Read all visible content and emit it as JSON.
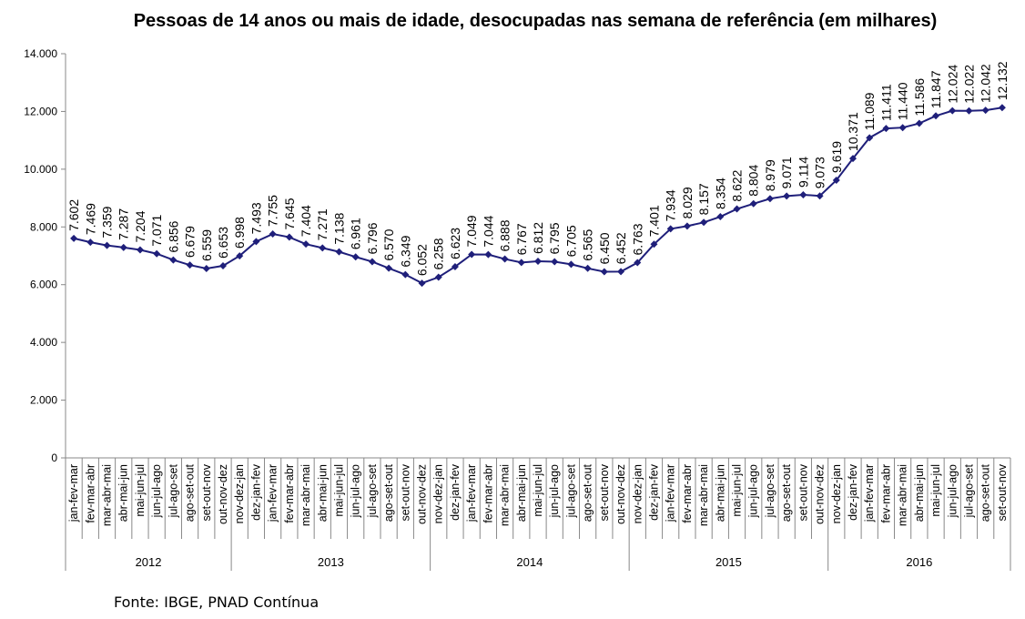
{
  "chart_data": {
    "type": "line",
    "title": "Pessoas de 14 anos ou mais de idade, desocupadas nas semana de referência (em milhares)",
    "ylim": [
      0,
      14000
    ],
    "yticks": [
      0,
      2000,
      4000,
      6000,
      8000,
      10000,
      12000,
      14000
    ],
    "ytick_labels": [
      "0",
      "2.000",
      "4.000",
      "6.000",
      "8.000",
      "10.000",
      "12.000",
      "14.000"
    ],
    "grid": false,
    "line_color": "#1f1f7a",
    "categories": [
      "jan-fev-mar",
      "fev-mar-abr",
      "mar-abr-mai",
      "abr-mai-jun",
      "mai-jun-jul",
      "jun-jul-ago",
      "jul-ago-set",
      "ago-set-out",
      "set-out-nov",
      "out-nov-dez",
      "nov-dez-jan",
      "dez-jan-fev",
      "jan-fev-mar",
      "fev-mar-abr",
      "mar-abr-mai",
      "abr-mai-jun",
      "mai-jun-jul",
      "jun-jul-ago",
      "jul-ago-set",
      "ago-set-out",
      "set-out-nov",
      "out-nov-dez",
      "nov-dez-jan",
      "dez-jan-fev",
      "jan-fev-mar",
      "fev-mar-abr",
      "mar-abr-mai",
      "abr-mai-jun",
      "mai-jun-jul",
      "jun-jul-ago",
      "jul-ago-set",
      "ago-set-out",
      "set-out-nov",
      "out-nov-dez",
      "nov-dez-jan",
      "dez-jan-fev",
      "jan-fev-mar",
      "fev-mar-abr",
      "mar-abr-mai",
      "abr-mai-jun",
      "mai-jun-jul",
      "jun-jul-ago",
      "jul-ago-set",
      "ago-set-out",
      "set-out-nov",
      "out-nov-dez",
      "nov-dez-jan",
      "dez-jan-fev",
      "jan-fev-mar",
      "fev-mar-abr",
      "mar-abr-mai",
      "abr-mai-jun",
      "mai-jun-jul",
      "jun-jul-ago",
      "jul-ago-set",
      "ago-set-out",
      "set-out-nov"
    ],
    "values": [
      7602,
      7469,
      7359,
      7287,
      7204,
      7071,
      6856,
      6679,
      6559,
      6653,
      6998,
      7493,
      7755,
      7645,
      7404,
      7271,
      7138,
      6961,
      6796,
      6570,
      6349,
      6052,
      6258,
      6623,
      7049,
      7044,
      6888,
      6767,
      6812,
      6795,
      6705,
      6565,
      6450,
      6452,
      6763,
      7401,
      7934,
      8029,
      8157,
      8354,
      8622,
      8804,
      8979,
      9071,
      9114,
      9073,
      9619,
      10371,
      11089,
      11411,
      11440,
      11586,
      11847,
      12024,
      12022,
      12042,
      12132
    ],
    "value_labels": [
      "7.602",
      "7.469",
      "7.359",
      "7.287",
      "7.204",
      "7.071",
      "6.856",
      "6.679",
      "6.559",
      "6.653",
      "6.998",
      "7.493",
      "7.755",
      "7.645",
      "7.404",
      "7.271",
      "7.138",
      "6.961",
      "6.796",
      "6.570",
      "6.349",
      "6.052",
      "6.258",
      "6.623",
      "7.049",
      "7.044",
      "6.888",
      "6.767",
      "6.812",
      "6.795",
      "6.705",
      "6.565",
      "6.450",
      "6.452",
      "6.763",
      "7.401",
      "7.934",
      "8.029",
      "8.157",
      "8.354",
      "8.622",
      "8.804",
      "8.979",
      "9.071",
      "9.114",
      "9.073",
      "9.619",
      "10.371",
      "11.089",
      "11.411",
      "11.440",
      "11.586",
      "11.847",
      "12.024",
      "12.022",
      "12.042",
      "12.132"
    ],
    "year_groups": [
      {
        "label": "2012",
        "count": 10
      },
      {
        "label": "2013",
        "count": 12
      },
      {
        "label": "2014",
        "count": 12
      },
      {
        "label": "2015",
        "count": 12
      },
      {
        "label": "2016",
        "count": 11
      }
    ]
  },
  "footer": {
    "source": "Fonte: IBGE, PNAD Contínua"
  }
}
